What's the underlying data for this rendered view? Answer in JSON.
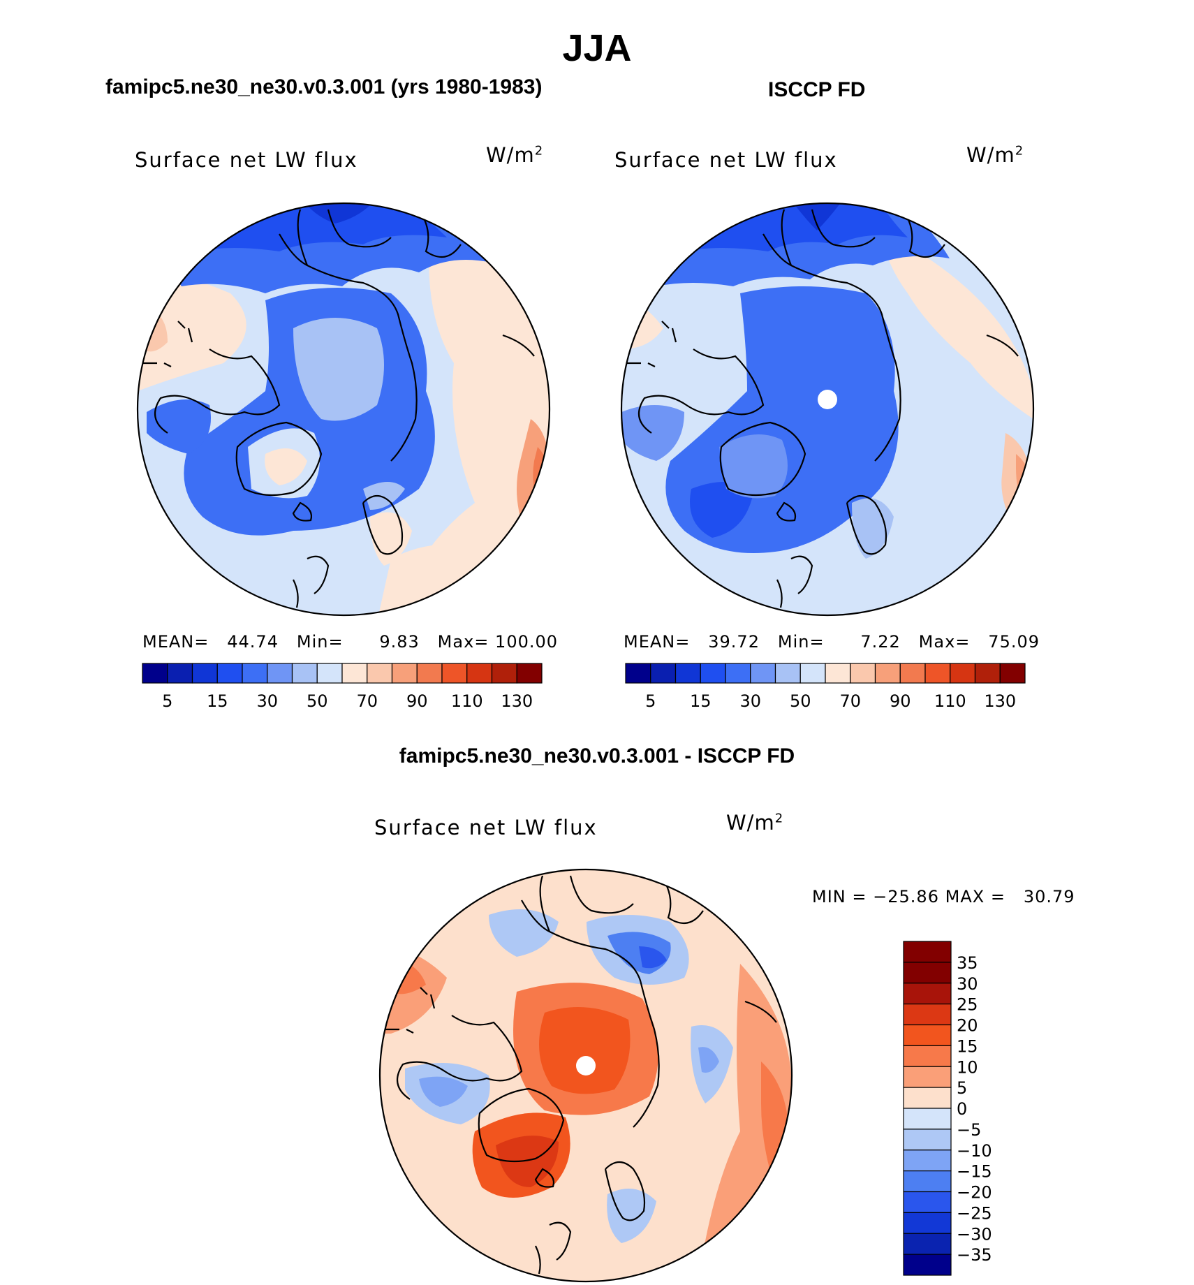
{
  "title": "JJA",
  "panels": [
    {
      "title": "famipc5.ne30_ne30.v0.3.001 (yrs 1980-1983)",
      "variable": "Surface net LW flux",
      "units_base": "W/m",
      "units_exp": "2",
      "stats": {
        "mean_label": "MEAN=",
        "mean": "44.74",
        "min_label": "Min=",
        "min": "9.83",
        "max_label": "Max=",
        "max": "100.00"
      }
    },
    {
      "title": "ISCCP FD",
      "variable": "Surface net LW flux",
      "units_base": "W/m",
      "units_exp": "2",
      "stats": {
        "mean_label": "MEAN=",
        "mean": "39.72",
        "min_label": "Min=",
        "min": "7.22",
        "max_label": "Max=",
        "max": "75.09"
      }
    },
    {
      "title": "famipc5.ne30_ne30.v0.3.001 - ISCCP FD",
      "variable": "Surface net LW flux",
      "units_base": "W/m",
      "units_exp": "2",
      "stats": {
        "min_label": "MIN",
        "eq": "=",
        "min": "−25.86",
        "max_label": "MAX",
        "max": "30.79"
      }
    }
  ],
  "chart_data": [
    {
      "type": "heatmap",
      "projection": "north polar stereographic",
      "title": "famipc5.ne30_ne30.v0.3.001 (yrs 1980-1983)",
      "variable": "Surface net LW flux",
      "units": "W/m2",
      "mean": 44.74,
      "min": 9.83,
      "max": 100.0,
      "colorbar": {
        "orientation": "horizontal",
        "tick_labels": [
          "5",
          "15",
          "30",
          "50",
          "70",
          "90",
          "110",
          "130"
        ]
      }
    },
    {
      "type": "heatmap",
      "projection": "north polar stereographic",
      "title": "ISCCP FD",
      "variable": "Surface net LW flux",
      "units": "W/m2",
      "mean": 39.72,
      "min": 7.22,
      "max": 75.09,
      "colorbar": {
        "orientation": "horizontal",
        "tick_labels": [
          "5",
          "15",
          "30",
          "50",
          "70",
          "90",
          "110",
          "130"
        ]
      }
    },
    {
      "type": "heatmap",
      "projection": "north polar stereographic",
      "title": "famipc5.ne30_ne30.v0.3.001 - ISCCP FD",
      "variable": "Surface net LW flux",
      "units": "W/m2",
      "min": -25.86,
      "max": 30.79,
      "colorbar": {
        "orientation": "vertical",
        "tick_labels": [
          "35",
          "30",
          "25",
          "20",
          "15",
          "10",
          "5",
          "0",
          "−5",
          "−10",
          "−15",
          "−20",
          "−25",
          "−30",
          "−35"
        ]
      }
    }
  ],
  "colors": {
    "abs_scale": [
      "#00008b",
      "#0a1fb0",
      "#1036d6",
      "#1f4ff0",
      "#3d6ff5",
      "#6f95f5",
      "#a8c2f5",
      "#d4e4fa",
      "#fde6d6",
      "#fac8ad",
      "#f7a07a",
      "#f27a4f",
      "#ee5528",
      "#d63512",
      "#b0200a",
      "#820000"
    ],
    "diff_scale": [
      "#820000",
      "#a8140a",
      "#dc3814",
      "#f2551e",
      "#f7794a",
      "#fa9f78",
      "#fde0cc",
      "#d4e4fa",
      "#aec8f5",
      "#7ea4f5",
      "#4d7ff2",
      "#2a56ed",
      "#1238d6",
      "#0a23b0",
      "#00008b"
    ]
  }
}
